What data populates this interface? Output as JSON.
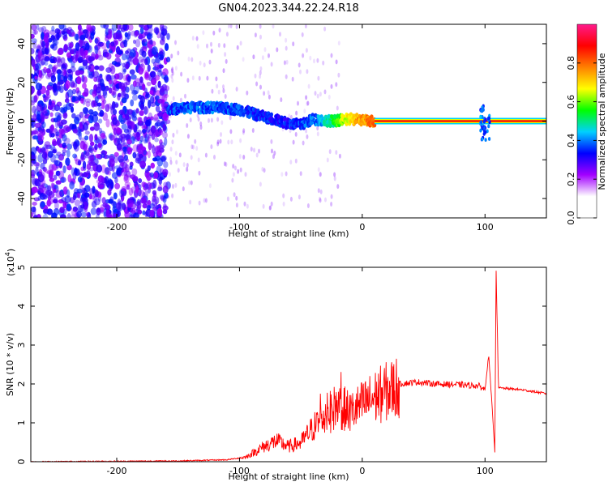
{
  "figure": {
    "title": "GN04.2023.344.22.24.R18"
  },
  "chart_data": [
    {
      "type": "heatmap",
      "xlabel": "Height of straight line (km)",
      "ylabel": "Frequency (Hz)",
      "xlim": [
        -270,
        150
      ],
      "ylim": [
        -50,
        50
      ],
      "xticks": [
        -200,
        -100,
        0,
        100
      ],
      "yticks": [
        -40,
        -20,
        0,
        20,
        40
      ],
      "colorbar": {
        "label": "Normalized spectral amplitude",
        "range": [
          0.0,
          1.0
        ],
        "ticks": [
          0.0,
          0.2,
          0.4,
          0.6,
          0.8
        ],
        "tick_labels": [
          "0.0",
          "0.2",
          "0.4",
          "0.6",
          "0.8"
        ],
        "colors": [
          "#ffffff",
          "#ffffff",
          "#a200ff",
          "#0000ff",
          "#00d0ff",
          "#00ff00",
          "#ffff00",
          "#ff8000",
          "#ff0000",
          "#ff1a8c"
        ]
      },
      "ridge": {
        "description_points": [
          {
            "x": -158,
            "y": 6,
            "amp": 0.35
          },
          {
            "x": -140,
            "y": 7,
            "amp": 0.38
          },
          {
            "x": -120,
            "y": 7,
            "amp": 0.38
          },
          {
            "x": -100,
            "y": 6,
            "amp": 0.36
          },
          {
            "x": -85,
            "y": 3,
            "amp": 0.34
          },
          {
            "x": -72,
            "y": 1,
            "amp": 0.33
          },
          {
            "x": -62,
            "y": -1,
            "amp": 0.34
          },
          {
            "x": -50,
            "y": -2,
            "amp": 0.36
          },
          {
            "x": -40,
            "y": 1,
            "amp": 0.38
          },
          {
            "x": -25,
            "y": 0,
            "amp": 0.5
          },
          {
            "x": -10,
            "y": 1,
            "amp": 0.7
          },
          {
            "x": 10,
            "y": 0,
            "amp": 0.8
          },
          {
            "x": 150,
            "y": 0,
            "amp": 0.9
          }
        ]
      }
    },
    {
      "type": "line",
      "xlabel": "Height of straight line (km)",
      "ylabel": "SNR (10 * v/v)",
      "scale_label": "(x10",
      "scale_exp": "4",
      "scale_close": ")",
      "xlim": [
        -270,
        150
      ],
      "ylim": [
        0,
        5
      ],
      "xticks": [
        -200,
        -100,
        0,
        100
      ],
      "yticks": [
        0,
        1,
        2,
        3,
        4,
        5
      ],
      "line_color": "#ff0000",
      "series": [
        {
          "values_envelope": [
            {
              "x": -270,
              "y": 0.0
            },
            {
              "x": -150,
              "y": 0.02
            },
            {
              "x": -110,
              "y": 0.05
            },
            {
              "x": -95,
              "y": 0.12
            },
            {
              "x": -80,
              "y": 0.4
            },
            {
              "x": -70,
              "y": 0.55
            },
            {
              "x": -60,
              "y": 0.4
            },
            {
              "x": -50,
              "y": 0.5
            },
            {
              "x": -40,
              "y": 0.9
            },
            {
              "x": -30,
              "y": 1.2
            },
            {
              "x": -20,
              "y": 1.5
            },
            {
              "x": -10,
              "y": 1.3
            },
            {
              "x": 0,
              "y": 1.5
            },
            {
              "x": 10,
              "y": 1.7
            },
            {
              "x": 20,
              "y": 1.85
            },
            {
              "x": 30,
              "y": 2.0
            },
            {
              "x": 45,
              "y": 2.05
            },
            {
              "x": 60,
              "y": 2.0
            },
            {
              "x": 80,
              "y": 1.98
            },
            {
              "x": 95,
              "y": 1.95
            },
            {
              "x": 100,
              "y": 1.85
            },
            {
              "x": 103,
              "y": 2.75
            },
            {
              "x": 106,
              "y": 1.3
            },
            {
              "x": 108,
              "y": 0.25
            },
            {
              "x": 109,
              "y": 5.0
            },
            {
              "x": 111,
              "y": 1.9
            },
            {
              "x": 130,
              "y": 1.85
            },
            {
              "x": 150,
              "y": 1.75
            }
          ]
        }
      ]
    }
  ]
}
